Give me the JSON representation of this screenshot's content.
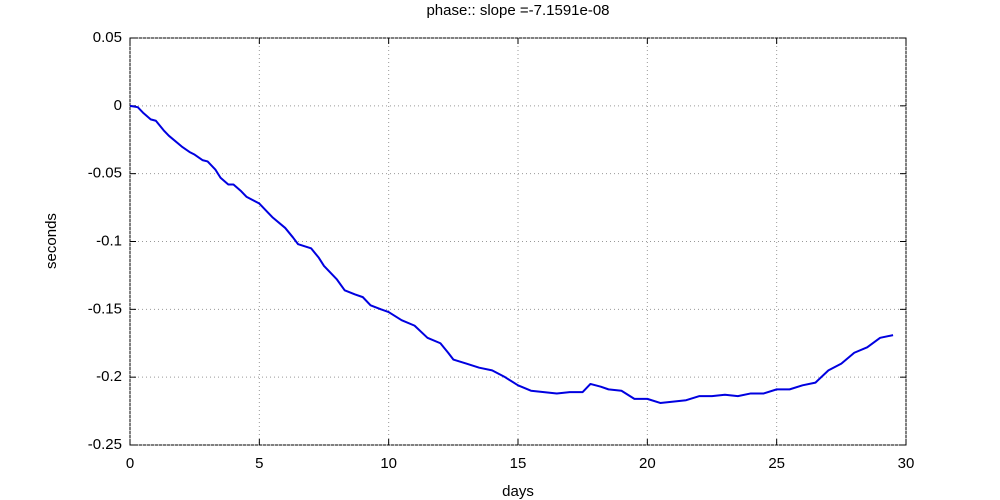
{
  "chart_data": {
    "type": "line",
    "title": "phase:: slope =-7.1591e-08",
    "x_label": "days",
    "y_label": "seconds",
    "x": [
      0,
      0.3,
      0.5,
      0.8,
      1.0,
      1.3,
      1.5,
      2.0,
      2.3,
      2.5,
      2.8,
      3.0,
      3.3,
      3.5,
      3.8,
      4.0,
      4.3,
      4.5,
      5.0,
      5.3,
      5.5,
      6.0,
      6.3,
      6.5,
      7.0,
      7.3,
      7.5,
      8.0,
      8.3,
      8.7,
      9.0,
      9.3,
      9.7,
      10.0,
      10.5,
      11.0,
      11.5,
      12.0,
      12.3,
      12.5,
      13.0,
      13.5,
      14.0,
      14.5,
      15.0,
      15.5,
      16.0,
      16.5,
      17.0,
      17.5,
      17.8,
      18.2,
      18.5,
      19.0,
      19.5,
      20.0,
      20.5,
      21.0,
      21.5,
      22.0,
      22.5,
      23.0,
      23.5,
      24.0,
      24.5,
      25.0,
      25.5,
      26.0,
      26.5,
      27.0,
      27.5,
      28.0,
      28.5,
      29.0,
      29.5
    ],
    "series": [
      {
        "color": "#0000e0",
        "values": [
          0,
          -0.001,
          -0.005,
          -0.01,
          -0.011,
          -0.018,
          -0.022,
          -0.03,
          -0.034,
          -0.036,
          -0.04,
          -0.041,
          -0.047,
          -0.053,
          -0.058,
          -0.058,
          -0.063,
          -0.067,
          -0.072,
          -0.078,
          -0.082,
          -0.09,
          -0.097,
          -0.102,
          -0.105,
          -0.112,
          -0.118,
          -0.128,
          -0.136,
          -0.139,
          -0.141,
          -0.147,
          -0.15,
          -0.152,
          -0.158,
          -0.162,
          -0.171,
          -0.175,
          -0.182,
          -0.187,
          -0.19,
          -0.193,
          -0.195,
          -0.2,
          -0.206,
          -0.21,
          -0.211,
          -0.212,
          -0.211,
          -0.211,
          -0.205,
          -0.207,
          -0.209,
          -0.21,
          -0.216,
          -0.216,
          -0.219,
          -0.218,
          -0.217,
          -0.214,
          -0.214,
          -0.213,
          -0.214,
          -0.212,
          -0.212,
          -0.209,
          -0.209,
          -0.206,
          -0.204,
          -0.195,
          -0.19,
          -0.182,
          -0.178,
          -0.171,
          -0.169
        ]
      }
    ],
    "xlim": [
      0,
      30
    ],
    "xticks": [
      0,
      5,
      10,
      15,
      20,
      25,
      30
    ],
    "ylim": [
      -0.25,
      0.05
    ],
    "yticks": [
      -0.25,
      -0.2,
      -0.15,
      -0.1,
      -0.05,
      0,
      0.05
    ],
    "grid": true
  }
}
